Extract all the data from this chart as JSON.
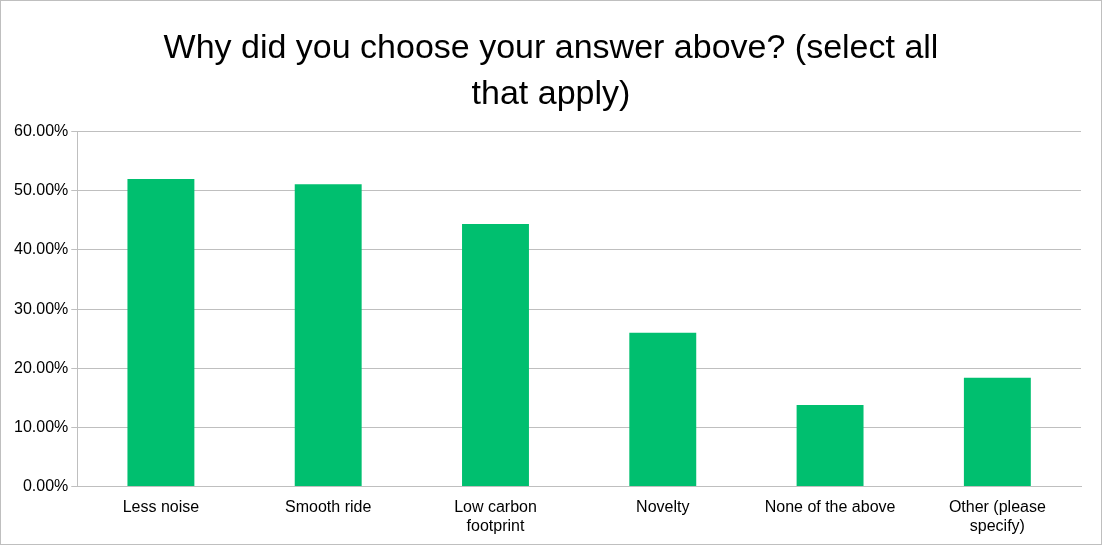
{
  "chart_data": {
    "type": "bar",
    "title": "Why did you choose your answer above? (select all that apply)",
    "categories": [
      "Less noise",
      "Smooth ride",
      "Low carbon footprint",
      "Novelty",
      "None of the above",
      "Other (please specify)"
    ],
    "values": [
      52.0,
      51.1,
      44.4,
      26.0,
      13.8,
      18.4
    ],
    "color": "#00bf6f",
    "ylim": [
      0,
      60
    ],
    "yticks": [
      {
        "value": 0,
        "label": "0.00%"
      },
      {
        "value": 10,
        "label": "10.00%"
      },
      {
        "value": 20,
        "label": "20.00%"
      },
      {
        "value": 30,
        "label": "30.00%"
      },
      {
        "value": 40,
        "label": "40.00%"
      },
      {
        "value": 50,
        "label": "50.00%"
      },
      {
        "value": 60,
        "label": "60.00%"
      }
    ],
    "grid": "y"
  }
}
